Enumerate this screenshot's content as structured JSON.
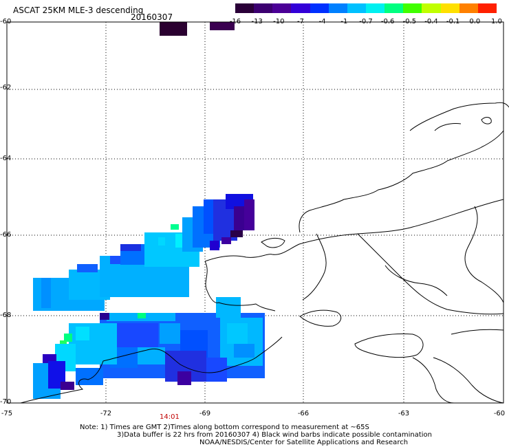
{
  "title": "ASCAT 25KM MLE-3 descending",
  "date": "20160307",
  "colorbar": {
    "labels": [
      "-16",
      "-13",
      "-10",
      "-7",
      "-4",
      "-1",
      "-0.7",
      "-0.6",
      "-0.5",
      "-0.4",
      "-0.1",
      "0.0",
      "1.0"
    ],
    "colors": [
      "#2a0038",
      "#3c0070",
      "#4b0096",
      "#3300d8",
      "#0030ff",
      "#0080ff",
      "#00c0ff",
      "#00f0f0",
      "#00ff80",
      "#40ff00",
      "#c0ff00",
      "#ffe000",
      "#ff8000",
      "#ff2000"
    ]
  },
  "axes": {
    "lat_labels": [
      "-60",
      "-62",
      "-64",
      "-66",
      "-68",
      "-70"
    ],
    "lon_labels": [
      "-75",
      "-72",
      "-69",
      "-66",
      "-63",
      "-60"
    ]
  },
  "time_label": "14:01",
  "notes": {
    "line1": "Note: 1) Times are GMT 2)Times along bottom correspond to measurement at ~65S",
    "line2": "3)Data buffer is 22 hrs from 20160307 4) Black wind barbs indicate possible contamination",
    "line3": "NOAA/NESDIS/Center for Satellite Applications and Research"
  }
}
